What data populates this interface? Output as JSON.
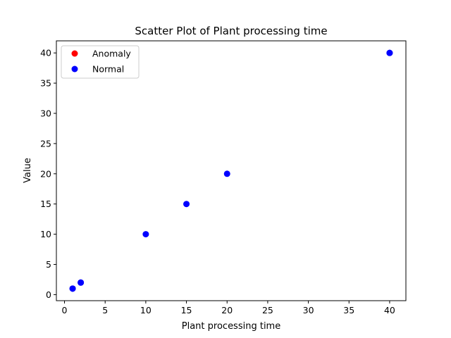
{
  "chart_data": {
    "type": "scatter",
    "title": "Scatter Plot of Plant processing time",
    "xlabel": "Plant processing time",
    "ylabel": "Value",
    "xlim": [
      -1,
      42
    ],
    "ylim": [
      -1,
      42
    ],
    "xticks": [
      0,
      5,
      10,
      15,
      20,
      25,
      30,
      35,
      40
    ],
    "yticks": [
      0,
      5,
      10,
      15,
      20,
      25,
      30,
      35,
      40
    ],
    "grid": false,
    "legend_position": "top-left",
    "series": [
      {
        "name": "Anomaly",
        "color": "#ff0000",
        "points": []
      },
      {
        "name": "Normal",
        "color": "#0000ff",
        "points": [
          [
            1,
            1
          ],
          [
            1,
            1
          ],
          [
            2,
            2
          ],
          [
            2,
            2
          ],
          [
            10,
            10
          ],
          [
            15,
            15
          ],
          [
            20,
            20
          ],
          [
            40,
            40
          ],
          [
            40,
            40
          ]
        ]
      }
    ]
  }
}
